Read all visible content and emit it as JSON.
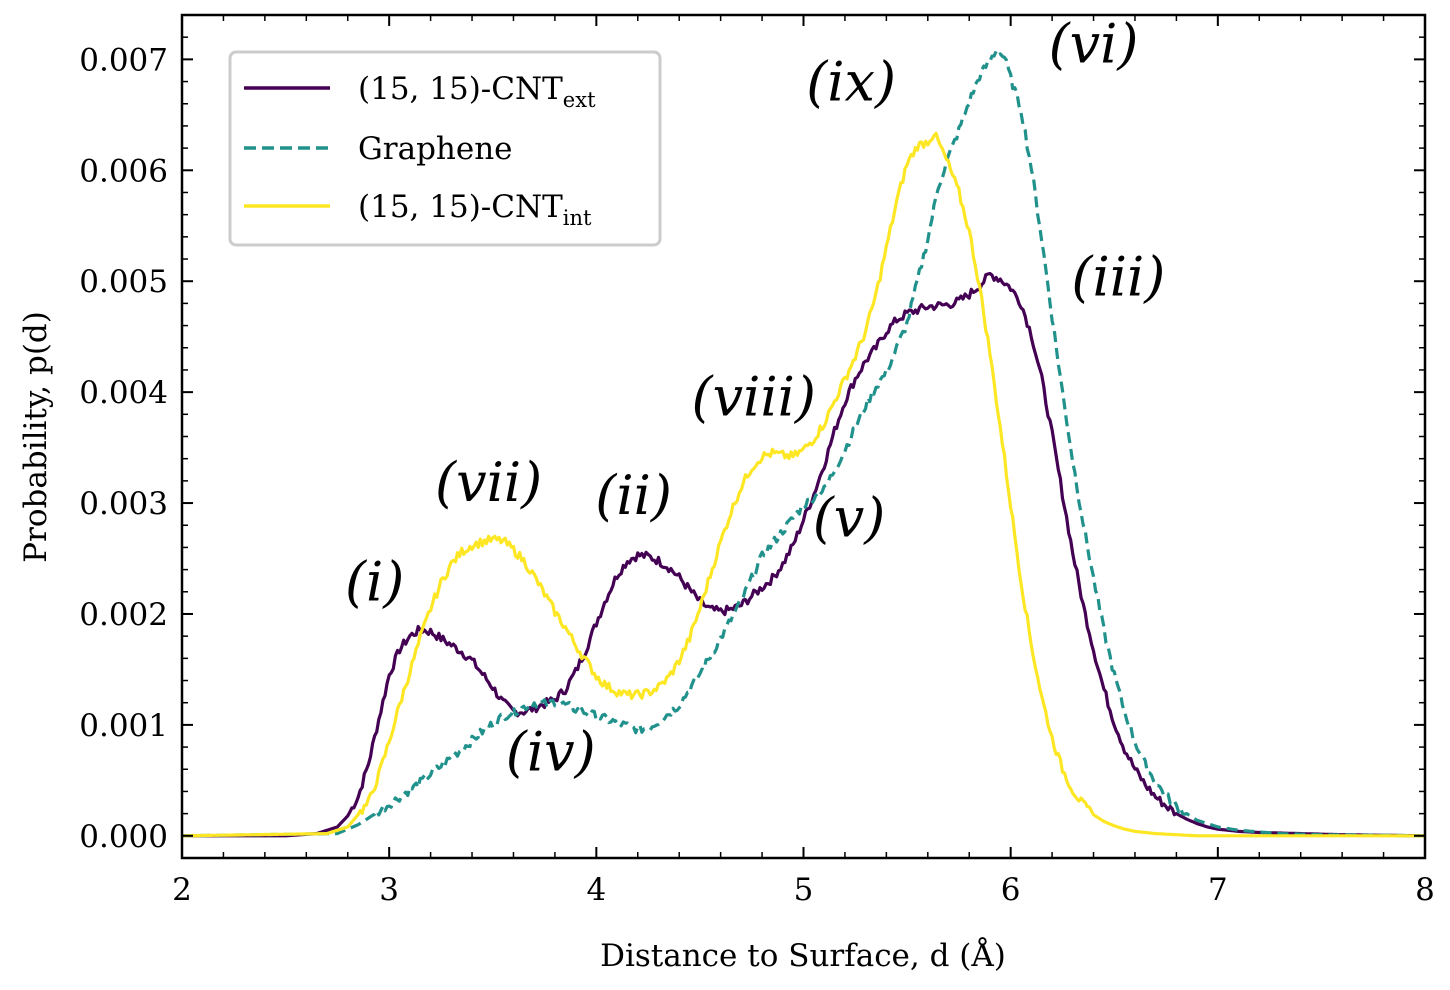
{
  "chart_data": {
    "type": "line",
    "xlabel": "Distance to Surface, d (Å)",
    "ylabel": "Probability, p(d)",
    "xlim": [
      2,
      8
    ],
    "ylim": [
      -0.0002,
      0.0074
    ],
    "xticks": [
      "2",
      "3",
      "4",
      "5",
      "6",
      "7",
      "8"
    ],
    "yticks": [
      "0.000",
      "0.001",
      "0.002",
      "0.003",
      "0.004",
      "0.005",
      "0.006",
      "0.007"
    ],
    "grid": false,
    "legend_position": "top-left",
    "series": [
      {
        "name": "(15, 15)-CNT",
        "name_subscript": "ext",
        "color": "#440154",
        "dash": "solid",
        "x": [
          2.0,
          2.5,
          2.65,
          2.75,
          2.8,
          2.85,
          2.9,
          2.95,
          3.0,
          3.05,
          3.1,
          3.15,
          3.2,
          3.25,
          3.3,
          3.35,
          3.4,
          3.45,
          3.5,
          3.55,
          3.6,
          3.65,
          3.7,
          3.75,
          3.8,
          3.85,
          3.9,
          3.95,
          4.0,
          4.05,
          4.1,
          4.15,
          4.2,
          4.25,
          4.3,
          4.35,
          4.4,
          4.45,
          4.5,
          4.55,
          4.6,
          4.65,
          4.7,
          4.75,
          4.8,
          4.85,
          4.9,
          4.95,
          5.0,
          5.05,
          5.1,
          5.15,
          5.2,
          5.25,
          5.3,
          5.35,
          5.4,
          5.45,
          5.5,
          5.55,
          5.6,
          5.65,
          5.7,
          5.75,
          5.8,
          5.85,
          5.9,
          5.95,
          6.0,
          6.05,
          6.1,
          6.15,
          6.2,
          6.25,
          6.3,
          6.35,
          6.4,
          6.45,
          6.5,
          6.55,
          6.6,
          6.65,
          6.7,
          6.75,
          6.8,
          6.85,
          6.9,
          6.95,
          7.0,
          7.1,
          7.2,
          7.4,
          7.6,
          8.0
        ],
        "y": [
          0.0,
          0.0,
          2e-05,
          8e-05,
          0.00018,
          0.00035,
          0.00065,
          0.00105,
          0.00145,
          0.00168,
          0.0018,
          0.00186,
          0.00184,
          0.00178,
          0.00172,
          0.00166,
          0.00158,
          0.00146,
          0.00134,
          0.0012,
          0.00112,
          0.00112,
          0.00115,
          0.00119,
          0.00123,
          0.00132,
          0.00148,
          0.00168,
          0.00192,
          0.00215,
          0.00235,
          0.00248,
          0.00253,
          0.00252,
          0.00248,
          0.00242,
          0.00233,
          0.00222,
          0.00211,
          0.00204,
          0.00202,
          0.00204,
          0.00208,
          0.00216,
          0.00224,
          0.00232,
          0.00245,
          0.00262,
          0.00285,
          0.00308,
          0.00335,
          0.00365,
          0.00392,
          0.00412,
          0.00428,
          0.0044,
          0.00455,
          0.00465,
          0.00471,
          0.00474,
          0.00477,
          0.00478,
          0.00479,
          0.00482,
          0.00488,
          0.00496,
          0.00506,
          0.00502,
          0.00494,
          0.0048,
          0.00452,
          0.00412,
          0.00362,
          0.00308,
          0.00255,
          0.00208,
          0.00168,
          0.00132,
          0.00102,
          0.00078,
          0.0006,
          0.00046,
          0.00035,
          0.00027,
          0.0002,
          0.00015,
          0.00011,
          8e-05,
          6e-05,
          4e-05,
          3e-05,
          2e-05,
          1e-05,
          0.0
        ]
      },
      {
        "name": "Graphene",
        "color": "#21918c",
        "dash": "dashed",
        "x": [
          2.0,
          2.75,
          2.85,
          2.95,
          3.05,
          3.15,
          3.25,
          3.35,
          3.45,
          3.55,
          3.65,
          3.7,
          3.75,
          3.8,
          3.85,
          3.9,
          4.0,
          4.1,
          4.2,
          4.25,
          4.3,
          4.4,
          4.5,
          4.6,
          4.7,
          4.75,
          4.8,
          4.9,
          5.0,
          5.05,
          5.1,
          5.2,
          5.3,
          5.35,
          5.4,
          5.5,
          5.6,
          5.65,
          5.7,
          5.75,
          5.8,
          5.85,
          5.9,
          5.93,
          5.97,
          6.0,
          6.05,
          6.1,
          6.15,
          6.2,
          6.25,
          6.3,
          6.35,
          6.4,
          6.45,
          6.5,
          6.55,
          6.6,
          6.65,
          6.7,
          6.75,
          6.8,
          6.85,
          6.9,
          7.0,
          7.1,
          7.3,
          7.5,
          8.0
        ],
        "y": [
          0.0,
          2e-05,
          0.0001,
          0.00022,
          0.00035,
          0.00048,
          0.00063,
          0.00078,
          0.00094,
          0.00108,
          0.00116,
          0.0012,
          0.00119,
          0.00121,
          0.00118,
          0.00114,
          0.00108,
          0.00102,
          0.00096,
          0.00097,
          0.00103,
          0.00118,
          0.00146,
          0.00178,
          0.00212,
          0.00232,
          0.00252,
          0.00275,
          0.00298,
          0.00305,
          0.00312,
          0.00348,
          0.00388,
          0.00405,
          0.00418,
          0.00462,
          0.00538,
          0.00585,
          0.00612,
          0.00636,
          0.00662,
          0.00685,
          0.00699,
          0.00708,
          0.00702,
          0.00683,
          0.00655,
          0.00602,
          0.00538,
          0.00468,
          0.004,
          0.00338,
          0.00282,
          0.00232,
          0.00185,
          0.00145,
          0.00112,
          0.00085,
          0.00064,
          0.00048,
          0.00036,
          0.00027,
          0.0002,
          0.00014,
          8e-05,
          5e-05,
          2e-05,
          1e-05,
          0.0
        ]
      },
      {
        "name": "(15, 15)-CNT",
        "name_subscript": "int",
        "color": "#fde725",
        "dash": "solid",
        "x": [
          2.0,
          2.7,
          2.8,
          2.9,
          2.95,
          3.0,
          3.05,
          3.1,
          3.15,
          3.2,
          3.25,
          3.3,
          3.35,
          3.4,
          3.45,
          3.5,
          3.55,
          3.6,
          3.65,
          3.7,
          3.75,
          3.8,
          3.85,
          3.9,
          3.95,
          4.0,
          4.05,
          4.1,
          4.15,
          4.2,
          4.25,
          4.3,
          4.35,
          4.4,
          4.45,
          4.5,
          4.55,
          4.6,
          4.65,
          4.7,
          4.75,
          4.8,
          4.85,
          4.9,
          4.95,
          5.0,
          5.05,
          5.1,
          5.15,
          5.2,
          5.25,
          5.3,
          5.35,
          5.4,
          5.45,
          5.5,
          5.55,
          5.6,
          5.63,
          5.65,
          5.7,
          5.75,
          5.8,
          5.85,
          5.9,
          5.95,
          6.0,
          6.05,
          6.1,
          6.15,
          6.2,
          6.25,
          6.3,
          6.35,
          6.4,
          6.45,
          6.5,
          6.55,
          6.6,
          6.65,
          6.7,
          6.8,
          6.9,
          7.0,
          7.2,
          8.0
        ],
        "y": [
          0.0,
          2e-05,
          8e-05,
          0.0003,
          0.00055,
          0.00085,
          0.00118,
          0.00148,
          0.00178,
          0.00205,
          0.00228,
          0.00245,
          0.00256,
          0.00262,
          0.00265,
          0.00267,
          0.00266,
          0.00258,
          0.00248,
          0.00234,
          0.00218,
          0.00202,
          0.00188,
          0.00172,
          0.00158,
          0.00144,
          0.00135,
          0.0013,
          0.00127,
          0.00127,
          0.00129,
          0.00134,
          0.00143,
          0.00158,
          0.00178,
          0.00205,
          0.00235,
          0.00265,
          0.00292,
          0.00315,
          0.00332,
          0.00342,
          0.00345,
          0.00343,
          0.00342,
          0.00348,
          0.00358,
          0.00372,
          0.00392,
          0.00412,
          0.00432,
          0.00455,
          0.00488,
          0.0053,
          0.00572,
          0.00606,
          0.00622,
          0.00626,
          0.00633,
          0.00626,
          0.00605,
          0.0058,
          0.00545,
          0.00495,
          0.00435,
          0.00368,
          0.00298,
          0.0023,
          0.00172,
          0.00125,
          0.00088,
          0.0006,
          0.00041,
          0.00028,
          0.00019,
          0.00013,
          9e-05,
          6e-05,
          4e-05,
          3e-05,
          2e-05,
          1e-05,
          0.0,
          0.0,
          0.0,
          0.0
        ]
      }
    ],
    "annotations": [
      {
        "text": "(i)",
        "x": 2.93,
        "y": 0.00212
      },
      {
        "text": "(ii)",
        "x": 4.18,
        "y": 0.0029
      },
      {
        "text": "(iii)",
        "x": 6.52,
        "y": 0.00487
      },
      {
        "text": "(iv)",
        "x": 3.78,
        "y": 0.00059
      },
      {
        "text": "(v)",
        "x": 5.22,
        "y": 0.0027
      },
      {
        "text": "(vi)",
        "x": 6.4,
        "y": 0.00697
      },
      {
        "text": "(vii)",
        "x": 3.48,
        "y": 0.00302
      },
      {
        "text": "(viii)",
        "x": 4.76,
        "y": 0.00379
      },
      {
        "text": "(ix)",
        "x": 5.23,
        "y": 0.00663
      }
    ]
  }
}
